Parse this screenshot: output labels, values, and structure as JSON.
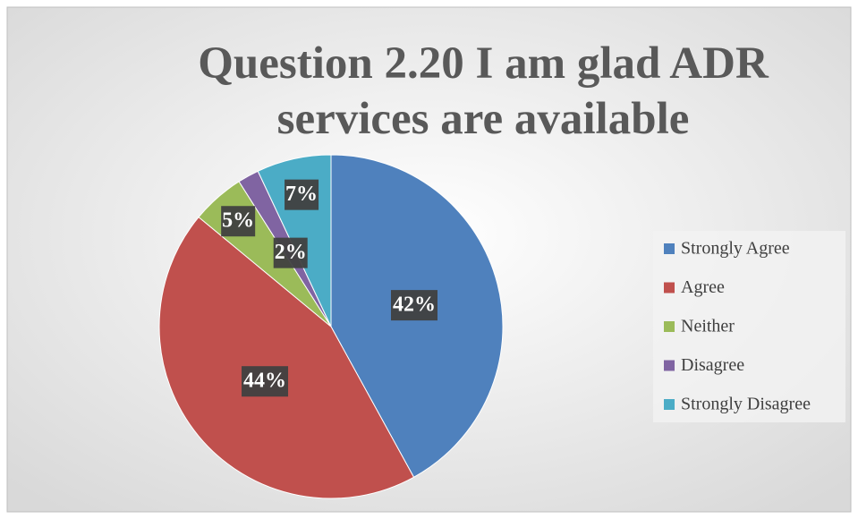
{
  "chart_data": {
    "type": "pie",
    "title": "Question 2.20 I am glad ADR services are available",
    "categories": [
      "Strongly Agree",
      "Agree",
      "Neither",
      "Disagree",
      "Strongly Disagree"
    ],
    "values": [
      42,
      44,
      5,
      2,
      7
    ],
    "value_labels": [
      "42%",
      "44%",
      "5%",
      "2%",
      "7%"
    ],
    "colors": [
      "#4f81bd",
      "#c0504d",
      "#9bbb59",
      "#8064a2",
      "#4bacc6"
    ],
    "legend": "right"
  }
}
